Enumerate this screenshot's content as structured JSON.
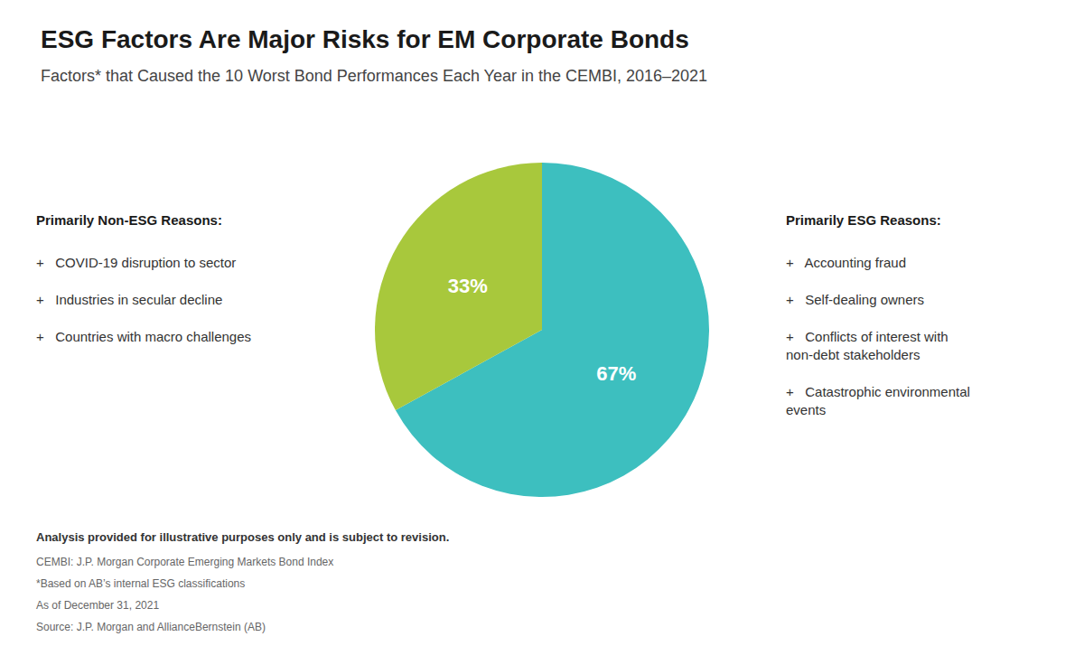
{
  "chart_data": {
    "type": "pie",
    "title": "ESG Factors Are Major Risks for EM Corporate Bonds",
    "subtitle": "Factors* that Caused the 10 Worst Bond Performances Each Year in the CEMBI, 2016–2021",
    "values": [
      67,
      33
    ],
    "value_labels": [
      "67%",
      "33%"
    ],
    "data_labels": true,
    "colors": [
      "#3dbfbf",
      "#a8c83c"
    ],
    "annotations": [
      {
        "header": "Primarily Non-ESG Reasons:",
        "items": [
          "+   COVID-19 disruption to sector",
          "+   Industries in secular decline",
          "+   Countries with macro challenges"
        ]
      },
      {
        "header": "Primarily ESG Reasons:",
        "items": [
          "+   Accounting fraud",
          "+   Self-dealing owners",
          "+   Conflicts of interest with\nnon-debt stakeholders",
          "+   Catastrophic environmental\nevents"
        ]
      }
    ],
    "footnotes": [
      "Analysis provided for illustrative purposes only and is subject to revision.",
      "CEMBI: J.P. Morgan Corporate Emerging Markets Bond Index",
      "*Based on AB’s internal ESG classifications",
      "As of December 31, 2021",
      "Source: J.P. Morgan and AllianceBernstein (AB)"
    ]
  }
}
